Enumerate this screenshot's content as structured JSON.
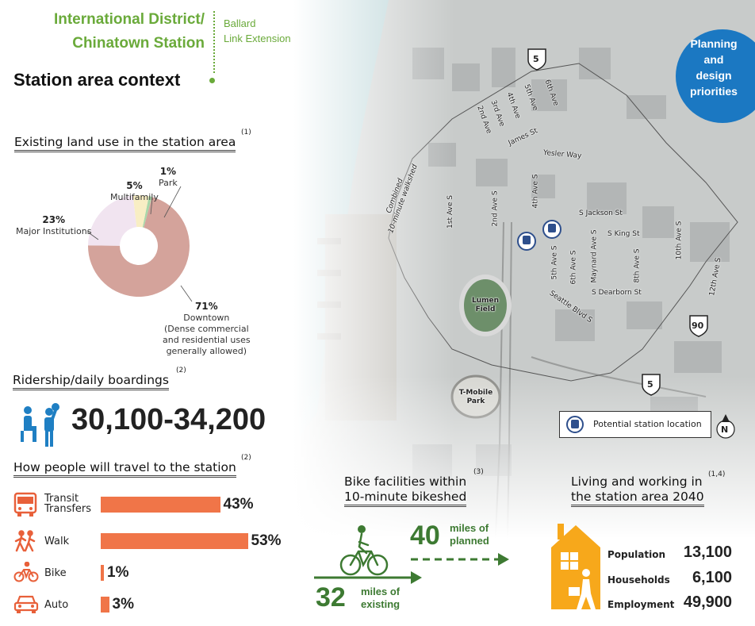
{
  "header": {
    "station_line1": "International District/",
    "station_line2": "Chinatown Station",
    "project_line1": "Ballard",
    "project_line2": "Link Extension",
    "page_title": "Station area context",
    "planning_badge": [
      "Planning",
      "and",
      "design",
      "priorities"
    ]
  },
  "land_use": {
    "heading": "Existing land use in the station area",
    "footnote": "(1)",
    "slices": [
      {
        "pct": "71%",
        "name": "Downtown",
        "value": 71,
        "color": "#d4a39b",
        "note": [
          "(Dense commercial",
          "and residential uses",
          "generally allowed)"
        ]
      },
      {
        "pct": "23%",
        "name": "Major Institutions",
        "value": 23,
        "color": "#f1e4f0"
      },
      {
        "pct": "5%",
        "name": "Multifamily",
        "value": 5,
        "color": "#f8eec4"
      },
      {
        "pct": "1%",
        "name": "Park",
        "value": 1,
        "color": "#a9d7a9"
      }
    ]
  },
  "ridership": {
    "heading": "Ridership/daily boardings",
    "footnote": "(2)",
    "value": "30,100-34,200"
  },
  "travel": {
    "heading": "How people will travel to the station",
    "footnote": "(2)",
    "modes": [
      {
        "label": [
          "Transit",
          "Transfers"
        ],
        "pct": "43%",
        "value": 43,
        "icon": "bus-icon"
      },
      {
        "label": [
          "Walk"
        ],
        "pct": "53%",
        "value": 53,
        "icon": "walking-icon"
      },
      {
        "label": [
          "Bike"
        ],
        "pct": "1%",
        "value": 1,
        "icon": "bicycle-icon"
      },
      {
        "label": [
          "Auto"
        ],
        "pct": "3%",
        "value": 3,
        "icon": "car-icon"
      }
    ]
  },
  "bike": {
    "heading_line1": "Bike facilities within",
    "heading_line2": "10-minute bikeshed",
    "footnote": "(3)",
    "planned_value": "40",
    "planned_line1": "miles of",
    "planned_line2": "planned",
    "existing_value": "32",
    "existing_line1": "miles of",
    "existing_line2": "existing"
  },
  "living": {
    "heading_line1": "Living and working in",
    "heading_line2": "the station area 2040",
    "footnote": "(1,4)",
    "stats": [
      {
        "label": "Population",
        "value": "13,100"
      },
      {
        "label": "Households",
        "value": "6,100"
      },
      {
        "label": "Employment",
        "value": "49,900"
      }
    ]
  },
  "map": {
    "legend_label": "Potential station location",
    "north_label": "N",
    "walkshed_label_line1": "Combined",
    "walkshed_label_line2": "10-minute walkshed",
    "streets": [
      "2nd Ave",
      "3rd Ave",
      "4th Ave",
      "5th Ave",
      "6th Ave",
      "James St",
      "Yesler Way",
      "1st Ave S",
      "2nd Ave S",
      "4th Ave S",
      "S Jackson St",
      "S King St",
      "5th Ave S",
      "6th Ave S",
      "Maynard Ave S",
      "8th Ave S",
      "10th Ave S",
      "12th Ave S",
      "S Dearborn St",
      "Seattle Blvd S"
    ],
    "venues": [
      "Lumen Field",
      "T-Mobile Park"
    ],
    "highways": [
      "5",
      "90",
      "5"
    ],
    "colors": {
      "water": "#bcd6d8",
      "land": "#c9cccb",
      "route": "#2e4f8c"
    }
  }
}
